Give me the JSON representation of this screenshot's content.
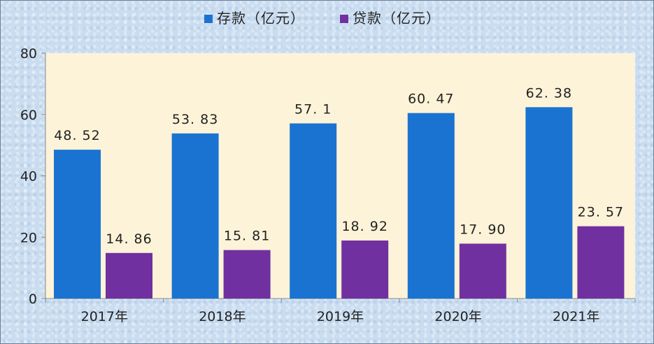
{
  "chart_data": {
    "type": "bar",
    "categories": [
      "2017年",
      "2018年",
      "2019年",
      "2020年",
      "2021年"
    ],
    "series": [
      {
        "name": "存款（亿元）",
        "color": "#1a73d1",
        "values": [
          48.52,
          53.83,
          57.1,
          60.47,
          62.38
        ],
        "labels": [
          "48. 52",
          "53. 83",
          "57. 1",
          "60. 47",
          "62. 38"
        ]
      },
      {
        "name": "贷款（亿元）",
        "color": "#7030a0",
        "values": [
          14.86,
          15.81,
          18.92,
          17.9,
          23.57
        ],
        "labels": [
          "14. 86",
          "15. 81",
          "18. 92",
          "17. 90",
          "23. 57"
        ]
      }
    ],
    "yticks": [
      "0",
      "20",
      "40",
      "60",
      "80"
    ],
    "ylim": [
      0,
      80
    ],
    "legend": "top-center",
    "grid": false,
    "plot_background": "#fdf3d8"
  }
}
